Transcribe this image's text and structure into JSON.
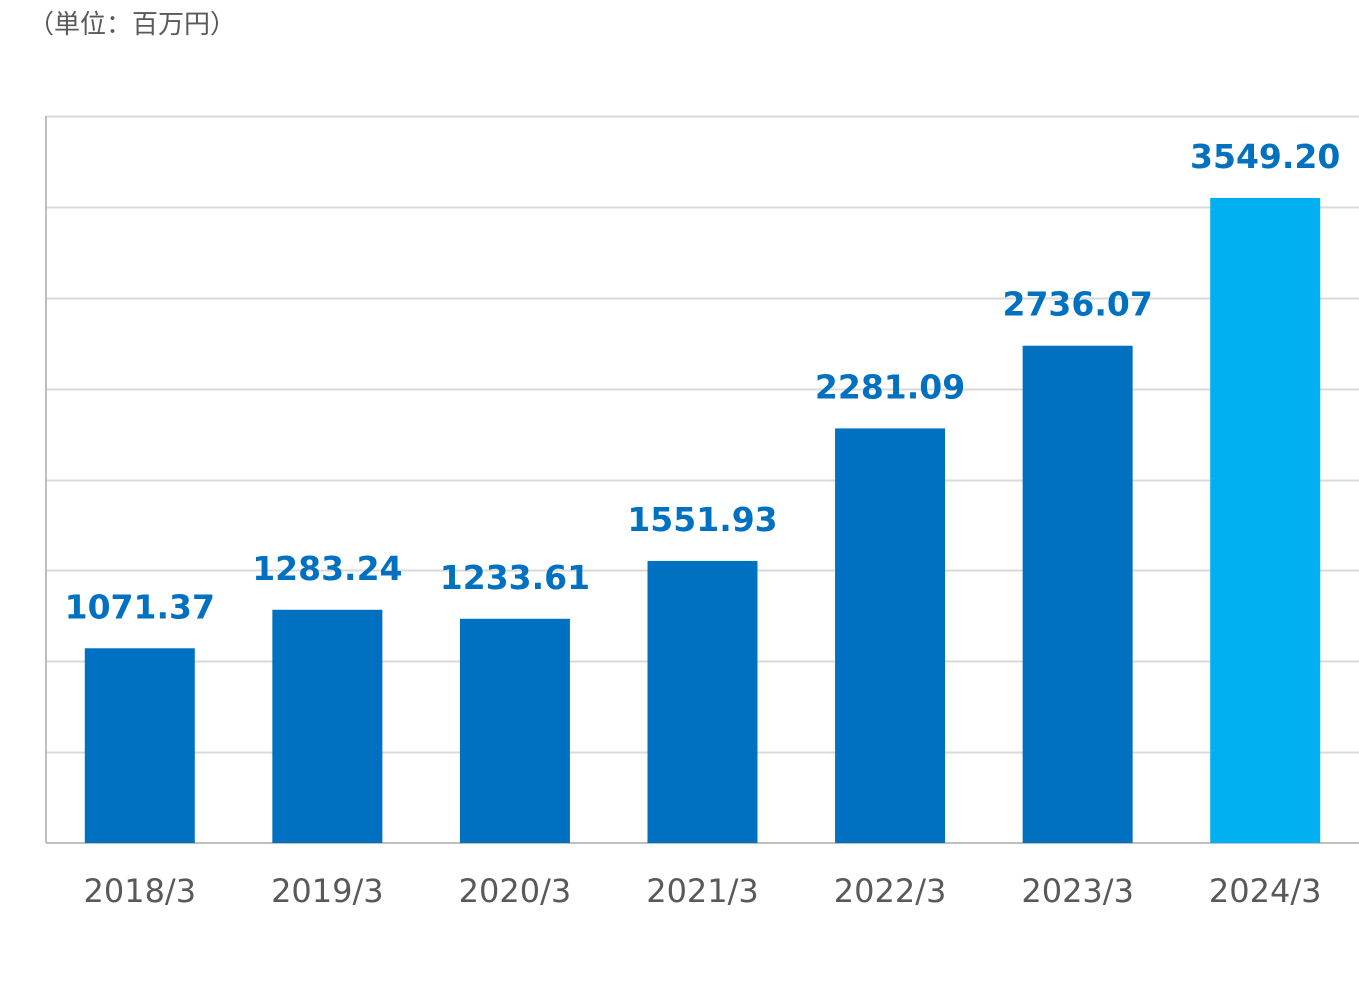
{
  "chart_data": {
    "type": "bar",
    "unit_label": "（単位：百万円）",
    "categories": [
      "2018/3",
      "2019/3",
      "2020/3",
      "2021/3",
      "2022/3",
      "2023/3",
      "2024/3"
    ],
    "values": [
      1071.37,
      1283.24,
      1233.61,
      1551.93,
      2281.09,
      2736.07,
      3549.2
    ],
    "value_labels": [
      "1071.37",
      "1283.24",
      "1233.61",
      "1551.93",
      "2281.09",
      "2736.07",
      "3549.20"
    ],
    "ylim": [
      0,
      4000
    ],
    "gridline_step": 500,
    "grid": true,
    "legend": "none",
    "colors": {
      "bar": "#0070c0",
      "highlight_bar": "#00b0f0",
      "label": "#0070c0",
      "grid": "#d9d9d9",
      "axis": "#bfbfbf",
      "tick_text": "#595959"
    },
    "highlight_index": 6
  }
}
